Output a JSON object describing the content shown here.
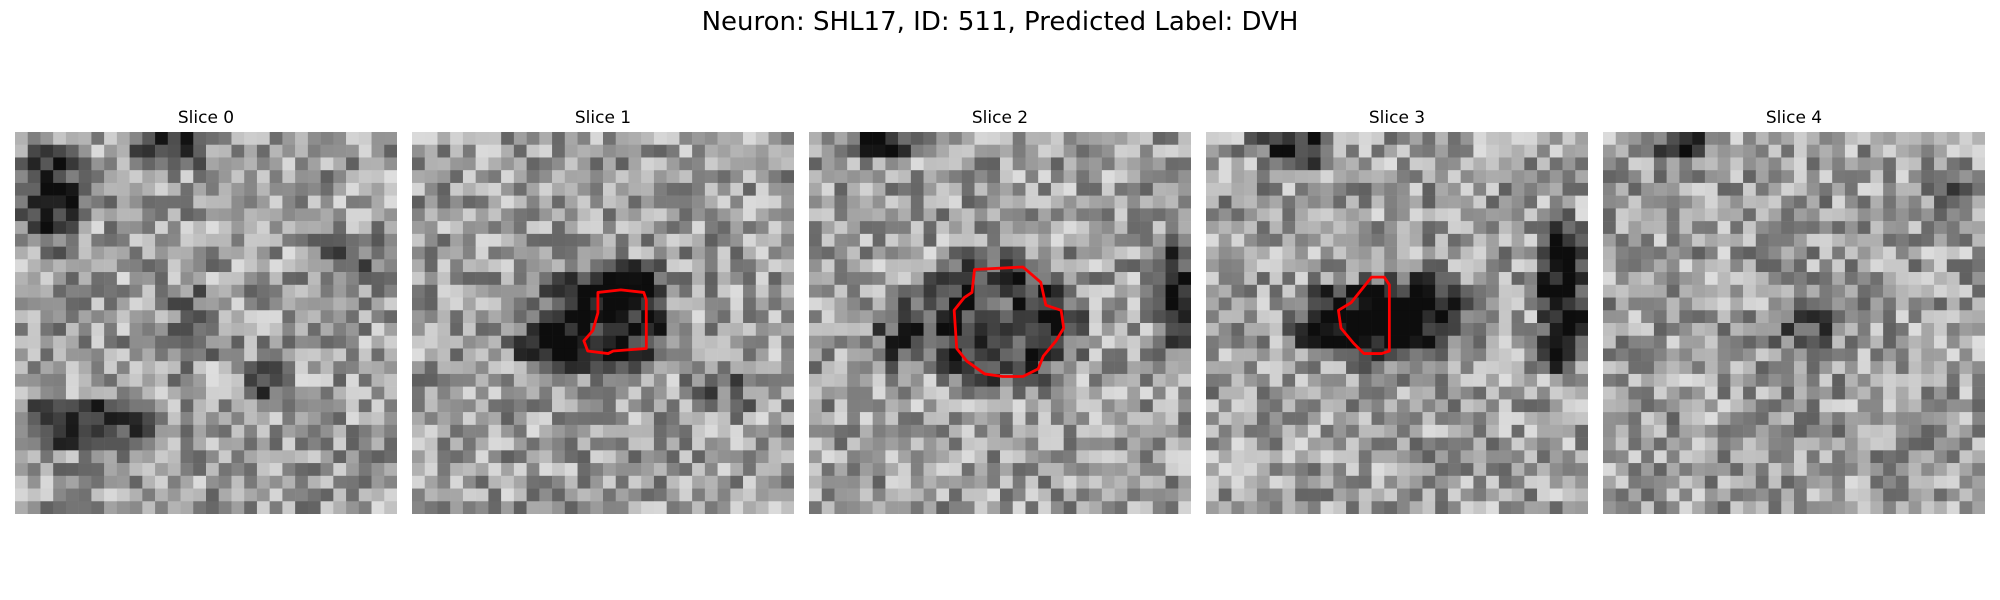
{
  "figure": {
    "title": "Neuron: SHL17, ID: 511, Predicted Label: DVH"
  },
  "slices": [
    {
      "label": "Slice 0",
      "has_contour": false,
      "contour_color": "#ff0000"
    },
    {
      "label": "Slice 1",
      "has_contour": true,
      "contour_color": "#ff0000"
    },
    {
      "label": "Slice 2",
      "has_contour": true,
      "contour_color": "#ff0000"
    },
    {
      "label": "Slice 3",
      "has_contour": true,
      "contour_color": "#ff0000"
    },
    {
      "label": "Slice 4",
      "has_contour": false,
      "contour_color": "#ff0000"
    }
  ],
  "colormap": "grayscale"
}
